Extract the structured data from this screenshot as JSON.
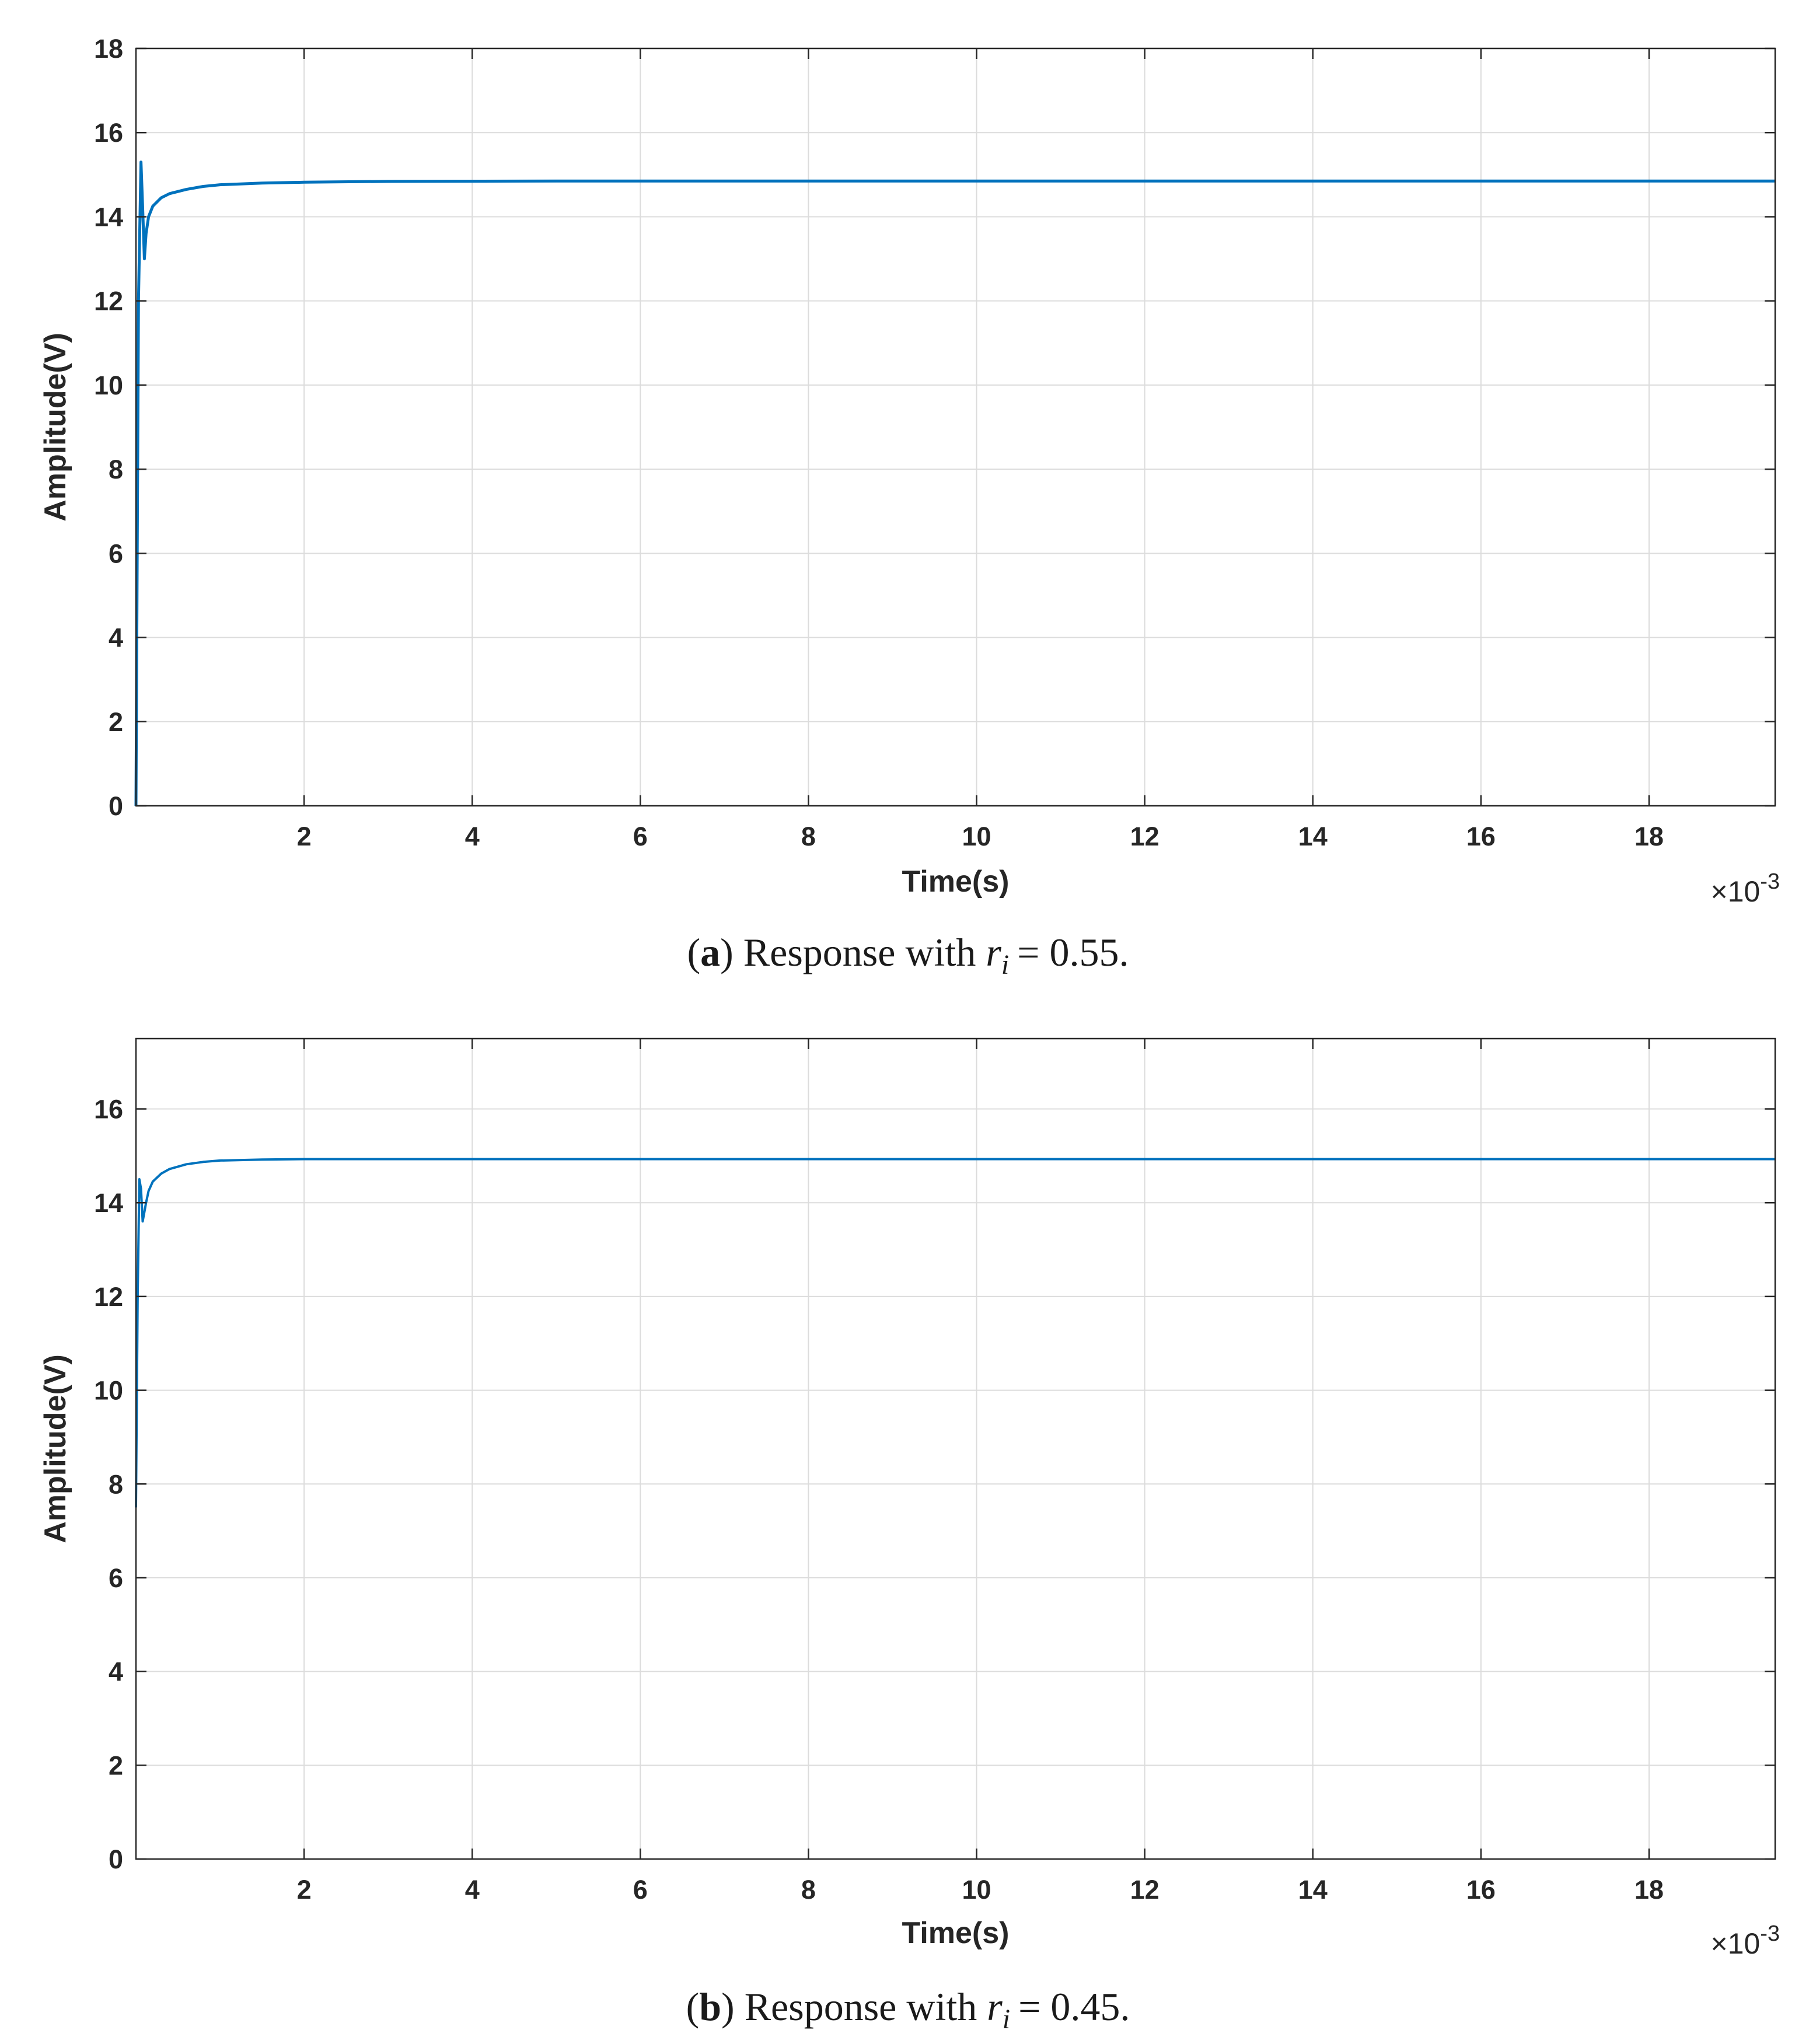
{
  "chart_data": [
    {
      "type": "line",
      "xlabel": "Time(s)",
      "ylabel": "Amplitude(V)",
      "x_exponent": "×10",
      "x_exponent_power": "-3",
      "xlim": [
        0,
        19.5
      ],
      "ylim": [
        0,
        18
      ],
      "xticks": [
        "2",
        "4",
        "6",
        "8",
        "10",
        "12",
        "14",
        "16",
        "18"
      ],
      "yticks": [
        "0",
        "2",
        "4",
        "6",
        "8",
        "10",
        "12",
        "14",
        "16",
        "18"
      ],
      "grid": true,
      "line_color": "#0072BD",
      "caption_letter": "a",
      "caption_text": "Response with",
      "caption_var": "r",
      "caption_sub": "i",
      "caption_value": "= 0.55.",
      "series": [
        {
          "x": [
            0,
            0.03,
            0.06,
            0.08,
            0.1,
            0.12,
            0.15,
            0.2,
            0.3,
            0.4,
            0.6,
            0.8,
            1.0,
            1.5,
            2.0,
            3.0,
            5.0,
            10.0,
            15.0,
            19.5
          ],
          "y": [
            0,
            12.0,
            15.3,
            14.2,
            13.0,
            13.6,
            14.0,
            14.25,
            14.45,
            14.55,
            14.65,
            14.72,
            14.76,
            14.8,
            14.82,
            14.84,
            14.85,
            14.85,
            14.85,
            14.85
          ]
        }
      ]
    },
    {
      "type": "line",
      "xlabel": "Time(s)",
      "ylabel": "Amplitude(V)",
      "x_exponent": "×10",
      "x_exponent_power": "-3",
      "xlim": [
        0,
        19.5
      ],
      "ylim": [
        0,
        17.5
      ],
      "xticks": [
        "2",
        "4",
        "6",
        "8",
        "10",
        "12",
        "14",
        "16",
        "18"
      ],
      "yticks": [
        "0",
        "2",
        "4",
        "6",
        "8",
        "10",
        "12",
        "14",
        "16"
      ],
      "grid": true,
      "line_color": "#0072BD",
      "caption_letter": "b",
      "caption_text": "Response with",
      "caption_var": "r",
      "caption_sub": "i",
      "caption_value": "= 0.45.",
      "series": [
        {
          "x": [
            0,
            0.02,
            0.04,
            0.06,
            0.08,
            0.1,
            0.12,
            0.15,
            0.2,
            0.3,
            0.4,
            0.6,
            0.8,
            1.0,
            1.5,
            2.0,
            4.0,
            10.0,
            15.0,
            19.5
          ],
          "y": [
            7.5,
            12.0,
            14.5,
            14.3,
            13.6,
            13.8,
            14.0,
            14.25,
            14.45,
            14.62,
            14.72,
            14.82,
            14.87,
            14.9,
            14.92,
            14.93,
            14.93,
            14.93,
            14.93,
            14.93
          ]
        }
      ]
    }
  ]
}
